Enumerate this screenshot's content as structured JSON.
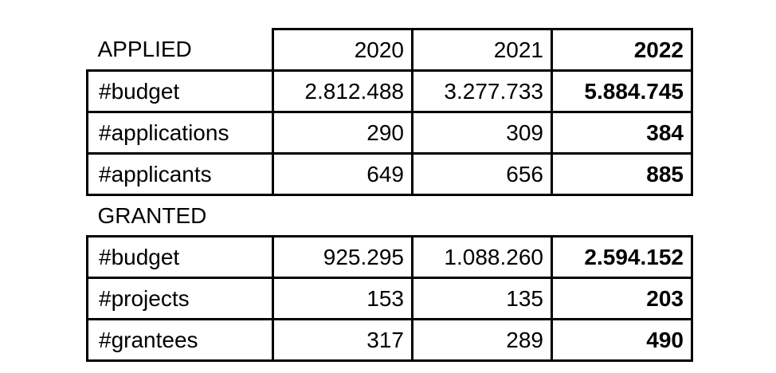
{
  "chart_data": {
    "type": "table",
    "columns": [
      "2020",
      "2021",
      "2022"
    ],
    "emphasized_column": "2022",
    "sections": [
      {
        "header": "APPLIED",
        "rows": [
          {
            "label": "#budget",
            "values": [
              "2.812.488",
              "3.277.733",
              "5.884.745"
            ]
          },
          {
            "label": "#applications",
            "values": [
              "290",
              "309",
              "384"
            ]
          },
          {
            "label": "#applicants",
            "values": [
              "649",
              "656",
              "885"
            ]
          }
        ]
      },
      {
        "header": "GRANTED",
        "rows": [
          {
            "label": "#budget",
            "values": [
              "925.295",
              "1.088.260",
              "2.594.152"
            ]
          },
          {
            "label": "#projects",
            "values": [
              "153",
              "135",
              "203"
            ]
          },
          {
            "label": "#grantees",
            "values": [
              "317",
              "289",
              "490"
            ]
          }
        ]
      }
    ],
    "layout": {
      "grid": "on",
      "value_alignment": "right",
      "label_alignment": "left"
    }
  },
  "colors": {
    "border": "#000000",
    "text": "#000000",
    "background": "#ffffff"
  }
}
